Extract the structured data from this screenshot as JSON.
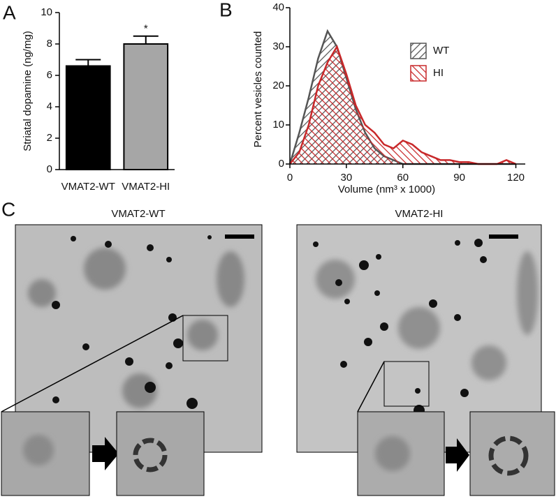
{
  "chart_data": [
    {
      "type": "bar",
      "ylabel": "Striatal dopamine (ng/mg)",
      "categories": [
        "VMAT2-WT",
        "VMAT2-HI"
      ],
      "values": [
        6.6,
        8.0
      ],
      "errors": [
        0.4,
        0.5
      ],
      "colors": [
        "#000000",
        "#a6a6a6"
      ],
      "annotation": "*",
      "annotation_index": 1,
      "ylim": [
        0,
        10
      ],
      "yticks": [
        0,
        2,
        4,
        6,
        8,
        10
      ]
    },
    {
      "type": "area",
      "xlabel": "Volume (nm³ x 1000)",
      "ylabel": "Percent vesicles counted",
      "x": [
        0,
        5,
        10,
        15,
        20,
        25,
        30,
        35,
        40,
        45,
        50,
        55,
        60,
        65,
        70,
        75,
        80,
        85,
        90,
        95,
        100,
        105,
        110,
        115,
        120
      ],
      "series": [
        {
          "name": "WT",
          "color": "#555555",
          "values": [
            0,
            8,
            17,
            27,
            34,
            30,
            22,
            14,
            8,
            4,
            2,
            1,
            0,
            0,
            0,
            0,
            0,
            0,
            0,
            0,
            0,
            0,
            0,
            0,
            0
          ]
        },
        {
          "name": "HI",
          "color": "#c8282a",
          "values": [
            0,
            3,
            10,
            20,
            26,
            30,
            23,
            15,
            10,
            8,
            5,
            4,
            6,
            5,
            3,
            2,
            1,
            1,
            0.5,
            0.5,
            0,
            0,
            0,
            1,
            0
          ]
        }
      ],
      "xlim": [
        0,
        125
      ],
      "xticks": [
        0,
        30,
        60,
        90,
        120
      ],
      "ylim": [
        0,
        40
      ],
      "yticks": [
        0,
        10,
        20,
        30,
        40
      ]
    }
  ],
  "panel_labels": [
    "A",
    "B",
    "C"
  ],
  "micrographs": {
    "titles": [
      "VMAT2-WT",
      "VMAT2-HI"
    ]
  }
}
